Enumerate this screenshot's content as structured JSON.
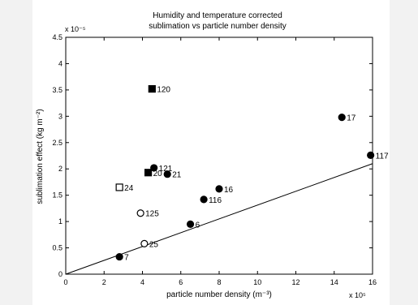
{
  "chart_data": {
    "type": "scatter",
    "title_line1": "Humidity and temperature corrected",
    "title_line2": "sublimation vs particle number density",
    "xlabel": "particle number density (m⁻³)",
    "ylabel": "sublimation effect (kg m⁻²)",
    "x_multiplier": "x 10⁵",
    "y_multiplier": "x 10⁻⁵",
    "xlim": [
      0,
      16
    ],
    "ylim": [
      0,
      4.5
    ],
    "x_ticks": [
      0,
      2,
      4,
      6,
      8,
      10,
      12,
      14,
      16
    ],
    "x_tick_labels": [
      "0",
      "2",
      "4",
      "6",
      "8",
      "10",
      "12",
      "14",
      "16"
    ],
    "y_ticks": [
      0,
      0.5,
      1,
      1.5,
      2,
      2.5,
      3,
      3.5,
      4,
      4.5
    ],
    "y_tick_labels": [
      "0",
      "0.5",
      "1",
      "1.5",
      "2",
      "2.5",
      "3",
      "3.5",
      "4",
      "4.5"
    ],
    "grid": false,
    "points": [
      {
        "label": "7",
        "x": 2.8,
        "y": 0.33,
        "marker": "circle-filled"
      },
      {
        "label": "25",
        "x": 4.1,
        "y": 0.58,
        "marker": "circle-open"
      },
      {
        "label": "6",
        "x": 6.5,
        "y": 0.95,
        "marker": "circle-filled"
      },
      {
        "label": "125",
        "x": 3.9,
        "y": 1.16,
        "marker": "circle-open"
      },
      {
        "label": "116",
        "x": 7.2,
        "y": 1.42,
        "marker": "circle-filled"
      },
      {
        "label": "16",
        "x": 8.0,
        "y": 1.62,
        "marker": "circle-filled"
      },
      {
        "label": "24",
        "x": 2.8,
        "y": 1.65,
        "marker": "square-open"
      },
      {
        "label": "20",
        "x": 4.3,
        "y": 1.93,
        "marker": "square-filled"
      },
      {
        "label": "21",
        "x": 5.3,
        "y": 1.9,
        "marker": "circle-filled"
      },
      {
        "label": "121",
        "x": 4.6,
        "y": 2.02,
        "marker": "circle-filled"
      },
      {
        "label": "117",
        "x": 15.9,
        "y": 2.26,
        "marker": "circle-filled"
      },
      {
        "label": "17",
        "x": 14.4,
        "y": 2.98,
        "marker": "circle-filled"
      },
      {
        "label": "120",
        "x": 4.5,
        "y": 3.52,
        "marker": "square-filled"
      }
    ],
    "fit_line": {
      "x": [
        0,
        16
      ],
      "y": [
        0,
        2.1
      ]
    }
  }
}
